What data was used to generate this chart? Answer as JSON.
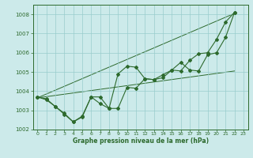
{
  "xlabel": "Graphe pression niveau de la mer (hPa)",
  "bg_color": "#cceaea",
  "grid_color": "#99cccc",
  "line_color": "#2d6a2d",
  "ylim": [
    1002,
    1008.5
  ],
  "xlim": [
    -0.5,
    23.5
  ],
  "yticks": [
    1002,
    1003,
    1004,
    1005,
    1006,
    1007,
    1008
  ],
  "xticks": [
    0,
    1,
    2,
    3,
    4,
    5,
    6,
    7,
    8,
    9,
    10,
    11,
    12,
    13,
    14,
    15,
    16,
    17,
    18,
    19,
    20,
    21,
    22,
    23
  ],
  "series1_x": [
    0,
    1,
    2,
    3,
    4,
    5,
    6,
    7,
    8,
    9,
    10,
    11,
    12,
    13,
    14,
    15,
    16,
    17,
    18,
    19,
    20,
    21,
    22
  ],
  "series1_y": [
    1003.7,
    1003.55,
    1003.2,
    1002.85,
    1002.4,
    1002.65,
    1003.7,
    1003.35,
    1003.1,
    1004.9,
    1005.3,
    1005.25,
    1004.65,
    1004.6,
    1004.85,
    1005.1,
    1005.5,
    1005.1,
    1005.05,
    1005.9,
    1006.0,
    1006.8,
    1008.1
  ],
  "series2_x": [
    0,
    1,
    2,
    3,
    4,
    5,
    6,
    7,
    8,
    9,
    10,
    11,
    12,
    13,
    14,
    15,
    16,
    17,
    18,
    19,
    20,
    21,
    22
  ],
  "series2_y": [
    1003.7,
    1003.6,
    1003.2,
    1002.8,
    1002.4,
    1002.7,
    1003.7,
    1003.7,
    1003.1,
    1003.1,
    1004.2,
    1004.15,
    1004.65,
    1004.6,
    1004.7,
    1005.1,
    1005.05,
    1005.6,
    1005.95,
    1006.0,
    1006.7,
    1007.6,
    1008.1
  ],
  "trend1": [
    0,
    22,
    1003.65,
    1008.05
  ],
  "trend2": [
    0,
    22,
    1003.65,
    1005.05
  ]
}
